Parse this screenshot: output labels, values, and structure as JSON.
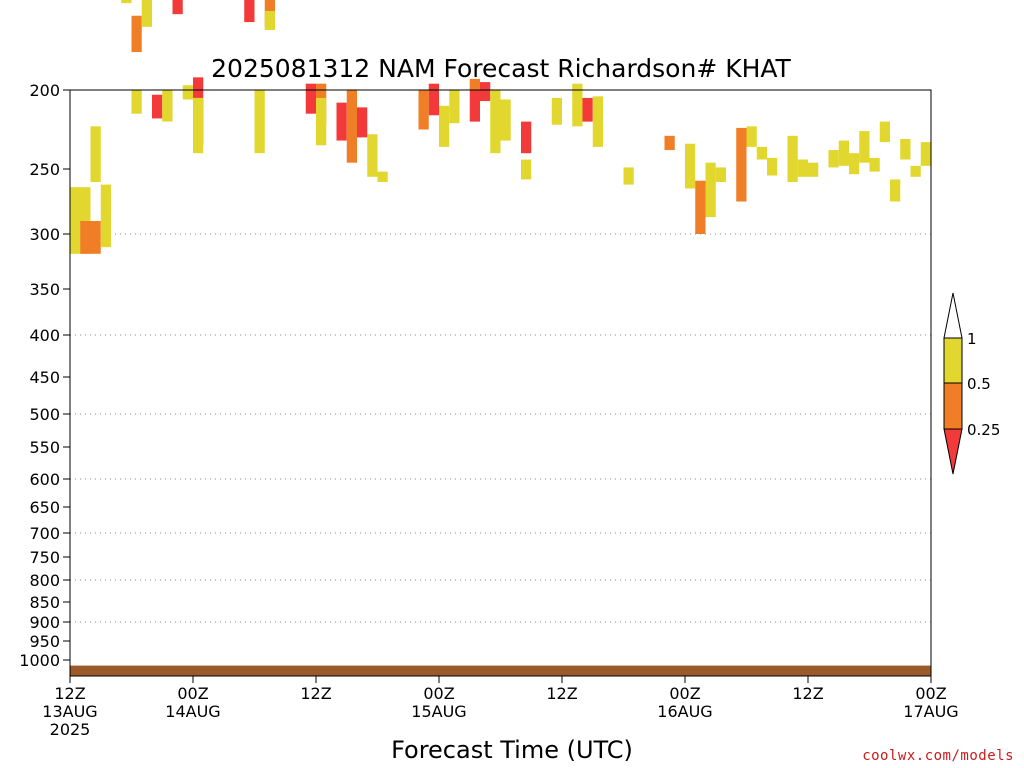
{
  "chart_data": {
    "type": "heatmap",
    "title": "2025081312 NAM Forecast Richardson# KHAT",
    "xlabel": "Forecast Time (UTC)",
    "ylabel": "",
    "x_range_hours": [
      0,
      84
    ],
    "y_range_hpa": [
      200,
      1050
    ],
    "y_ticks": [
      200,
      250,
      300,
      350,
      400,
      450,
      500,
      550,
      600,
      650,
      700,
      750,
      800,
      850,
      900,
      950,
      1000
    ],
    "y_gridlines": [
      300,
      400,
      500,
      600,
      700,
      800,
      900
    ],
    "x_ticks": [
      {
        "hour": 0,
        "line1": "12Z",
        "line2": "13AUG",
        "line3": "2025"
      },
      {
        "hour": 12,
        "line1": "00Z",
        "line2": "14AUG",
        "line3": ""
      },
      {
        "hour": 24,
        "line1": "12Z",
        "line2": "",
        "line3": ""
      },
      {
        "hour": 36,
        "line1": "00Z",
        "line2": "15AUG",
        "line3": ""
      },
      {
        "hour": 48,
        "line1": "12Z",
        "line2": "",
        "line3": ""
      },
      {
        "hour": 60,
        "line1": "00Z",
        "line2": "16AUG",
        "line3": ""
      },
      {
        "hour": 72,
        "line1": "12Z",
        "line2": "",
        "line3": ""
      },
      {
        "hour": 84,
        "line1": "00Z",
        "line2": "17AUG",
        "line3": ""
      }
    ],
    "legend": {
      "placement": "right",
      "levels": [
        "0.25",
        "0.5",
        "1"
      ],
      "colors": {
        "lt_0_25": "#f23a3a",
        "0_25_to_0_5": "#f07e26",
        "0_5_to_1": "#e2d72e"
      }
    },
    "ground_color": "#9a5a2a",
    "grid": "dotted",
    "cells": [
      [
        0,
        264,
        2,
        318,
        "y"
      ],
      [
        1,
        290,
        3,
        318,
        "o"
      ],
      [
        2,
        223,
        3,
        260,
        "y"
      ],
      [
        3,
        262,
        4,
        312,
        "y"
      ],
      [
        5,
        118,
        6,
        145,
        "y"
      ],
      [
        6,
        153,
        7,
        176,
        "o"
      ],
      [
        6,
        200,
        7,
        215,
        "y"
      ],
      [
        7,
        135,
        8,
        160,
        "y"
      ],
      [
        8,
        203,
        9,
        218,
        "r"
      ],
      [
        9,
        200,
        10,
        220,
        "y"
      ],
      [
        10,
        120,
        11,
        152,
        "r"
      ],
      [
        11,
        96,
        12,
        121,
        "o"
      ],
      [
        12,
        192,
        13,
        235,
        "r"
      ],
      [
        11,
        197,
        12,
        206,
        "y"
      ],
      [
        12,
        205,
        13,
        240,
        "y"
      ],
      [
        18,
        200,
        19,
        240,
        "y"
      ],
      [
        17,
        120,
        18,
        157,
        "r"
      ],
      [
        19,
        128,
        20,
        160,
        "o"
      ],
      [
        19,
        150,
        20,
        162,
        "y"
      ],
      [
        22,
        111,
        23,
        121,
        "y"
      ],
      [
        23,
        196,
        24,
        215,
        "r"
      ],
      [
        24,
        196,
        25,
        222,
        "o"
      ],
      [
        24,
        205,
        25,
        235,
        "y"
      ],
      [
        26,
        208,
        27,
        232,
        "r"
      ],
      [
        27,
        200,
        28,
        246,
        "o"
      ],
      [
        28,
        211,
        29,
        230,
        "r"
      ],
      [
        29,
        228,
        30,
        256,
        "y"
      ],
      [
        30,
        252,
        31,
        260,
        "y"
      ],
      [
        34,
        200,
        35,
        225,
        "o"
      ],
      [
        35,
        196,
        36,
        216,
        "r"
      ],
      [
        36,
        210,
        37,
        236,
        "y"
      ],
      [
        37,
        200,
        38,
        221,
        "y"
      ],
      [
        39,
        199,
        40,
        220,
        "r"
      ],
      [
        39,
        193,
        40,
        200,
        "o"
      ],
      [
        40,
        195,
        41,
        207,
        "r"
      ],
      [
        41,
        200,
        42,
        240,
        "y"
      ],
      [
        42,
        206,
        43,
        232,
        "y"
      ],
      [
        44,
        220,
        45,
        240,
        "r"
      ],
      [
        44,
        244,
        45,
        258,
        "y"
      ],
      [
        47,
        205,
        48,
        222,
        "y"
      ],
      [
        49,
        196,
        50,
        223,
        "y"
      ],
      [
        50,
        205,
        51,
        220,
        "r"
      ],
      [
        51,
        204,
        52,
        236,
        "y"
      ],
      [
        54,
        249,
        55,
        262,
        "y"
      ],
      [
        58,
        229,
        59,
        238,
        "o"
      ],
      [
        60,
        234,
        61,
        265,
        "y"
      ],
      [
        61,
        259,
        62,
        300,
        "o"
      ],
      [
        62,
        246,
        63,
        287,
        "y"
      ],
      [
        63,
        249,
        64,
        260,
        "y"
      ],
      [
        65,
        224,
        66,
        275,
        "o"
      ],
      [
        66,
        223,
        67,
        236,
        "y"
      ],
      [
        67,
        236,
        68,
        244,
        "y"
      ],
      [
        68,
        243,
        69,
        255,
        "y"
      ],
      [
        70,
        229,
        71,
        260,
        "y"
      ],
      [
        71,
        244,
        72,
        256,
        "y"
      ],
      [
        72,
        246,
        73,
        256,
        "y"
      ],
      [
        74,
        238,
        75,
        249,
        "y"
      ],
      [
        75,
        232,
        76,
        248,
        "y"
      ],
      [
        76,
        240,
        77,
        254,
        "y"
      ],
      [
        77,
        226,
        78,
        246,
        "y"
      ],
      [
        78,
        243,
        79,
        252,
        "y"
      ],
      [
        79,
        220,
        80,
        233,
        "y"
      ],
      [
        80,
        258,
        81,
        275,
        "y"
      ],
      [
        81,
        231,
        82,
        244,
        "y"
      ],
      [
        82,
        248,
        83,
        256,
        "y"
      ],
      [
        83,
        233,
        84,
        248,
        "y"
      ]
    ],
    "ground_pressure": 1005
  }
}
